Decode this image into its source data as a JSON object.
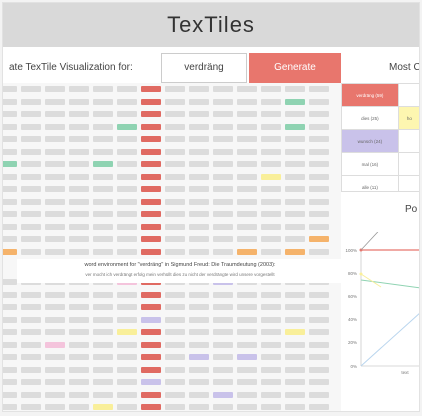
{
  "app": {
    "title": "TexTiles"
  },
  "controls": {
    "label": "ate TexTile Visualization for:",
    "word_value": "verdräng",
    "generate_label": "Generate",
    "most_label": "Most C"
  },
  "snippet": {
    "line1": "word environment for \"verdräng\" in Sigmund Freud: Die Traumdeutung (2003):",
    "line2": "ver mocht ich verdrängt erfolg mein verhüllt dies zu nicht der verdrängte wird unsere vorgestellt"
  },
  "side_table": {
    "rows": [
      [
        "verdräng (59)",
        ""
      ],
      [
        "dies (25)",
        "ho"
      ],
      [
        "wunsch (24)",
        ""
      ],
      [
        "mal (16)",
        ""
      ],
      [
        "alle (11)",
        ""
      ]
    ]
  },
  "panel": {
    "title": "Po"
  },
  "chart_data": {
    "type": "line",
    "y_tick_labels": [
      "100%",
      "80%",
      "60%",
      "40%",
      "20%",
      "0%"
    ],
    "x_tick_labels": [
      "text"
    ]
  },
  "colors": {
    "accent": "#e8766d",
    "keyword_column": "#e06a62",
    "highlight_green": "#8fd3b2",
    "highlight_yellow": "#f9ef9a",
    "highlight_purple": "#c9c2ea",
    "highlight_orange": "#f5b36b",
    "highlight_pink": "#f4c4dc",
    "tile_grey": "#dcdcdc"
  }
}
